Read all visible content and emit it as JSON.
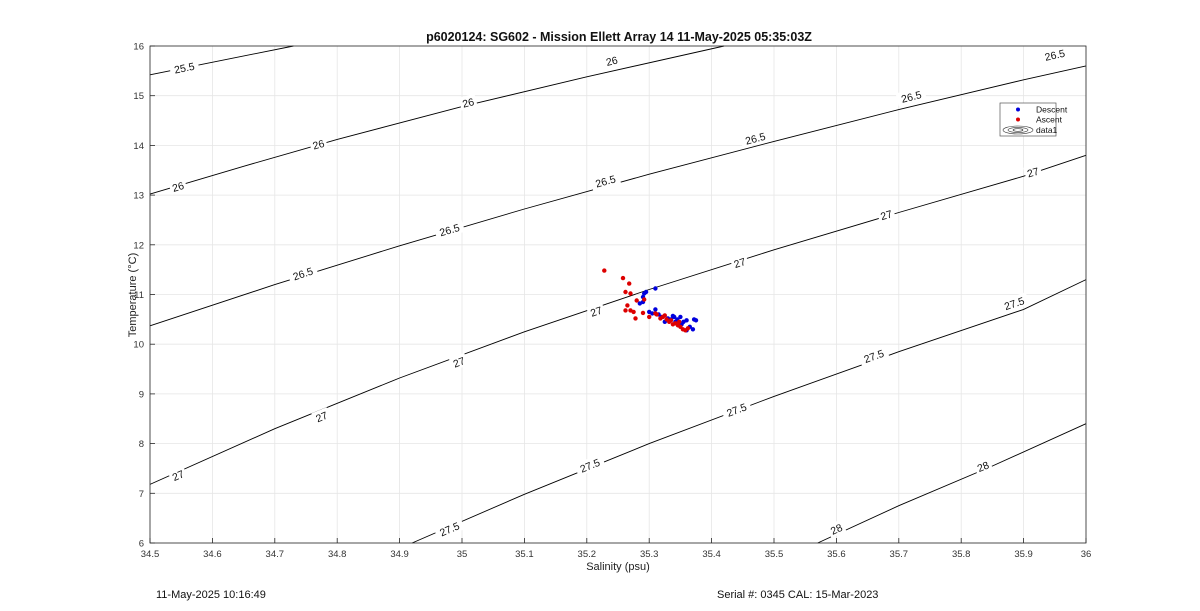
{
  "chart_data": {
    "type": "scatter",
    "title": "p6020124: SG602 - Mission Ellett Array 14 11-May-2025 05:35:03Z",
    "xlabel": "Salinity (psu)",
    "ylabel": "Temperature (°C)",
    "xlim": [
      34.5,
      36
    ],
    "ylim": [
      6,
      16
    ],
    "xticks": [
      34.5,
      34.6,
      34.7,
      34.8,
      34.9,
      35,
      35.1,
      35.2,
      35.3,
      35.4,
      35.5,
      35.6,
      35.7,
      35.8,
      35.9,
      36
    ],
    "yticks": [
      6,
      7,
      8,
      9,
      10,
      11,
      12,
      13,
      14,
      15,
      16
    ],
    "grid": true,
    "legend_position": "top-right",
    "legend": [
      "Descent",
      "Ascent",
      "data1"
    ],
    "series": [
      {
        "name": "Descent",
        "color": "#0000dd",
        "points": [
          [
            35.29,
            10.95
          ],
          [
            35.292,
            11.02
          ],
          [
            35.295,
            11.05
          ],
          [
            35.31,
            11.12
          ],
          [
            35.29,
            10.85
          ],
          [
            35.285,
            10.82
          ],
          [
            35.3,
            10.65
          ],
          [
            35.305,
            10.62
          ],
          [
            35.31,
            10.7
          ],
          [
            35.315,
            10.6
          ],
          [
            35.32,
            10.55
          ],
          [
            35.33,
            10.52
          ],
          [
            35.335,
            10.5
          ],
          [
            35.34,
            10.55
          ],
          [
            35.345,
            10.5
          ],
          [
            35.35,
            10.55
          ],
          [
            35.355,
            10.45
          ],
          [
            35.36,
            10.48
          ],
          [
            35.365,
            10.35
          ],
          [
            35.37,
            10.3
          ],
          [
            35.372,
            10.5
          ],
          [
            35.375,
            10.48
          ],
          [
            35.36,
            10.28
          ],
          [
            35.352,
            10.4
          ],
          [
            35.342,
            10.45
          ],
          [
            35.338,
            10.57
          ],
          [
            35.325,
            10.45
          ]
        ]
      },
      {
        "name": "Ascent",
        "color": "#dd0000",
        "points": [
          [
            35.228,
            11.48
          ],
          [
            35.258,
            11.33
          ],
          [
            35.268,
            11.22
          ],
          [
            35.262,
            11.05
          ],
          [
            35.27,
            11.02
          ],
          [
            35.28,
            10.88
          ],
          [
            35.292,
            10.9
          ],
          [
            35.265,
            10.78
          ],
          [
            35.27,
            10.68
          ],
          [
            35.262,
            10.68
          ],
          [
            35.275,
            10.65
          ],
          [
            35.278,
            10.52
          ],
          [
            35.29,
            10.63
          ],
          [
            35.3,
            10.55
          ],
          [
            35.312,
            10.6
          ],
          [
            35.318,
            10.52
          ],
          [
            35.322,
            10.55
          ],
          [
            35.328,
            10.5
          ],
          [
            35.332,
            10.45
          ],
          [
            35.338,
            10.4
          ],
          [
            35.342,
            10.42
          ],
          [
            35.346,
            10.38
          ],
          [
            35.35,
            10.35
          ],
          [
            35.354,
            10.3
          ],
          [
            35.358,
            10.28
          ],
          [
            35.362,
            10.32
          ],
          [
            35.348,
            10.45
          ],
          [
            35.335,
            10.48
          ],
          [
            35.31,
            10.62
          ],
          [
            35.325,
            10.58
          ]
        ]
      }
    ],
    "isopycnals": {
      "color": "#000000",
      "levels": [
        {
          "value": 25.5,
          "line": [
            [
              34.5,
              15.42
            ],
            [
              34.73,
              16
            ]
          ],
          "labels": [
            {
              "text": "25.5",
              "x": 34.555,
              "y": 15.56
            }
          ]
        },
        {
          "value": 26.0,
          "line": [
            [
              34.5,
              13.02
            ],
            [
              34.65,
              13.58
            ],
            [
              34.8,
              14.12
            ],
            [
              35.0,
              14.78
            ],
            [
              35.2,
              15.38
            ],
            [
              35.42,
              16
            ]
          ],
          "labels": [
            {
              "text": "26",
              "x": 34.545,
              "y": 13.17
            },
            {
              "text": "26",
              "x": 34.77,
              "y": 14.02
            },
            {
              "text": "26",
              "x": 35.01,
              "y": 14.86
            },
            {
              "text": "26",
              "x": 35.24,
              "y": 15.7
            }
          ]
        },
        {
          "value": 26.5,
          "line": [
            [
              34.5,
              10.37
            ],
            [
              34.7,
              11.2
            ],
            [
              34.9,
              11.98
            ],
            [
              35.1,
              12.72
            ],
            [
              35.3,
              13.42
            ],
            [
              35.5,
              14.08
            ],
            [
              35.7,
              14.72
            ],
            [
              35.9,
              15.32
            ],
            [
              36.0,
              15.6
            ]
          ],
          "labels": [
            {
              "text": "26.5",
              "x": 34.745,
              "y": 11.42
            },
            {
              "text": "26.5",
              "x": 34.98,
              "y": 12.3
            },
            {
              "text": "26.5",
              "x": 35.23,
              "y": 13.28
            },
            {
              "text": "26.5",
              "x": 35.47,
              "y": 14.14
            },
            {
              "text": "26.5",
              "x": 35.72,
              "y": 14.98
            },
            {
              "text": "26.5",
              "x": 35.95,
              "y": 15.82
            }
          ]
        },
        {
          "value": 27.0,
          "line": [
            [
              34.5,
              7.18
            ],
            [
              34.7,
              8.3
            ],
            [
              34.9,
              9.32
            ],
            [
              35.1,
              10.25
            ],
            [
              35.3,
              11.1
            ],
            [
              35.5,
              11.9
            ],
            [
              35.7,
              12.65
            ],
            [
              35.9,
              13.38
            ],
            [
              36.0,
              13.8
            ]
          ],
          "labels": [
            {
              "text": "27",
              "x": 34.545,
              "y": 7.36
            },
            {
              "text": "27",
              "x": 34.775,
              "y": 8.54
            },
            {
              "text": "27",
              "x": 34.995,
              "y": 9.64
            },
            {
              "text": "27",
              "x": 35.215,
              "y": 10.66
            },
            {
              "text": "27",
              "x": 35.445,
              "y": 11.64
            },
            {
              "text": "27",
              "x": 35.68,
              "y": 12.6
            },
            {
              "text": "27",
              "x": 35.915,
              "y": 13.46
            }
          ]
        },
        {
          "value": 27.5,
          "line": [
            [
              34.92,
              6.0
            ],
            [
              35.1,
              6.98
            ],
            [
              35.3,
              8.0
            ],
            [
              35.5,
              8.95
            ],
            [
              35.7,
              9.85
            ],
            [
              35.9,
              10.7
            ],
            [
              36.0,
              11.3
            ]
          ],
          "labels": [
            {
              "text": "27.5",
              "x": 34.98,
              "y": 6.28
            },
            {
              "text": "27.5",
              "x": 35.205,
              "y": 7.56
            },
            {
              "text": "27.5",
              "x": 35.44,
              "y": 8.68
            },
            {
              "text": "27.5",
              "x": 35.66,
              "y": 9.76
            },
            {
              "text": "27.5",
              "x": 35.885,
              "y": 10.82
            }
          ]
        },
        {
          "value": 28.0,
          "line": [
            [
              35.57,
              6.0
            ],
            [
              35.7,
              6.75
            ],
            [
              35.85,
              7.55
            ],
            [
              36.0,
              8.4
            ]
          ],
          "labels": [
            {
              "text": "28",
              "x": 35.6,
              "y": 6.28
            },
            {
              "text": "28",
              "x": 35.835,
              "y": 7.54
            }
          ]
        }
      ]
    }
  },
  "footer": {
    "timestamp": "11-May-2025 10:16:49",
    "serial_cal": "Serial #: 0345  CAL: 15-Mar-2023"
  }
}
